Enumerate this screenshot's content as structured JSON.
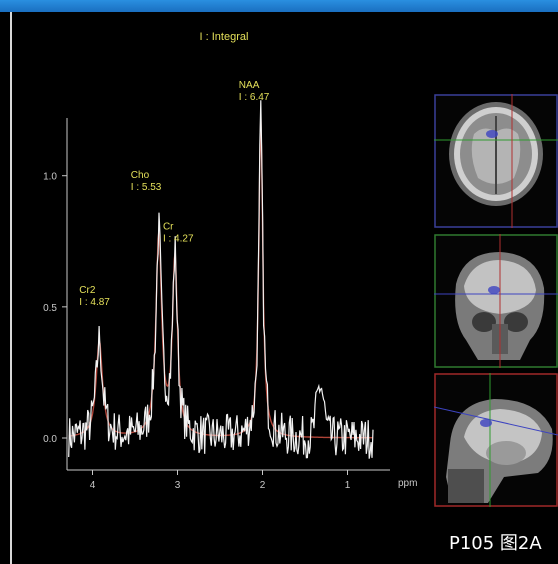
{
  "caption": "P105 图2A",
  "chart_data": {
    "type": "line",
    "title": "I : Integral",
    "xlabel": "ppm",
    "ylabel": "",
    "xlim": [
      4.3,
      0.5
    ],
    "ylim": [
      -0.12,
      1.22
    ],
    "x_ticks": [
      4,
      3,
      2,
      1
    ],
    "y_ticks": [
      0.0,
      0.5,
      1.0
    ],
    "y_tick_labels": [
      "0.0",
      "0.5",
      "1.0"
    ],
    "grid": false,
    "peaks": [
      {
        "name": "Cr2",
        "label": "I : 4.87",
        "ppm": 3.92,
        "height": 0.37
      },
      {
        "name": "Cho",
        "label": "I : 5.53",
        "ppm": 3.22,
        "height": 0.77
      },
      {
        "name": "Cr",
        "label": "I : 4.27",
        "ppm": 3.03,
        "height": 0.68
      },
      {
        "name": "NAA",
        "label": "I : 6.47",
        "ppm": 2.02,
        "height": 1.22
      }
    ],
    "series": [
      {
        "role": "measured",
        "color": "#ffffff"
      },
      {
        "role": "fit",
        "color": "#b04438"
      }
    ],
    "noise_bump": {
      "ppm": 1.32,
      "height": 0.2
    }
  },
  "mri_views": [
    {
      "view": "axial",
      "frame_color": "#3a3f9a"
    },
    {
      "view": "coronal",
      "frame_color": "#2f7a2f"
    },
    {
      "view": "sagittal",
      "frame_color": "#a02828"
    }
  ],
  "colors": {
    "annotation": "#e4e05a",
    "axis": "#c8c8c8"
  }
}
